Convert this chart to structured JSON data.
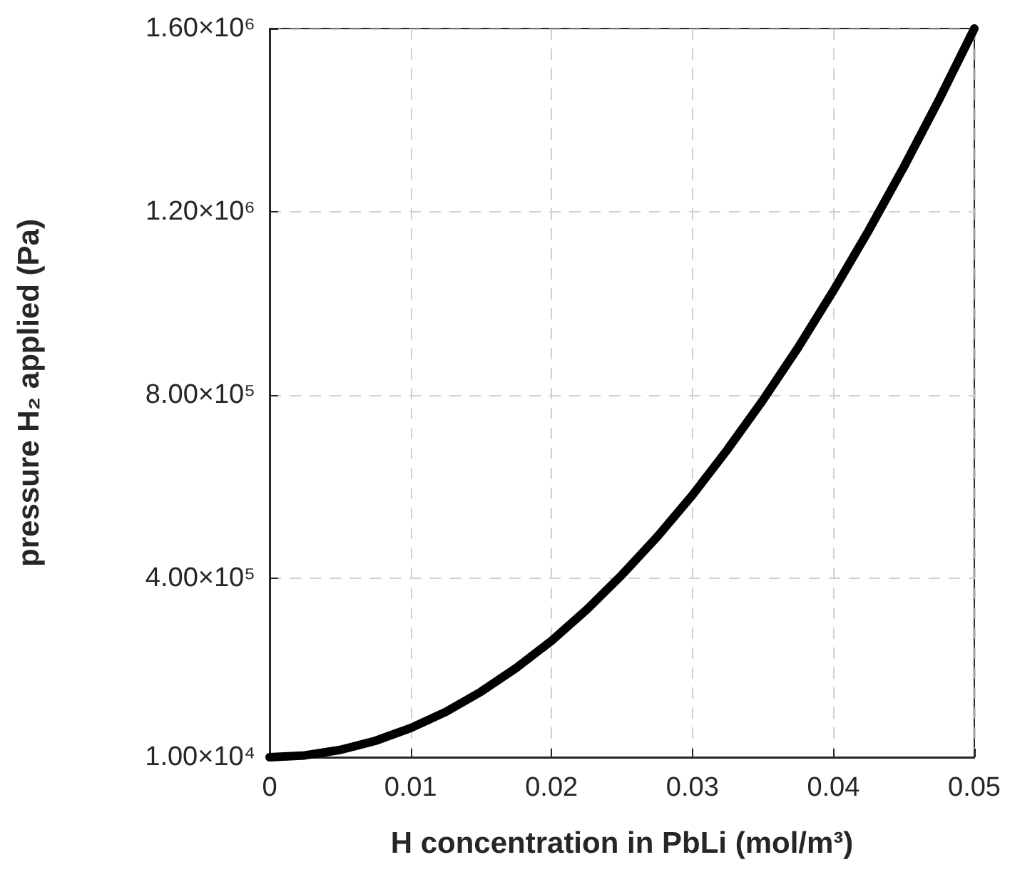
{
  "chart_data": {
    "type": "line",
    "xlabel": "H concentration in PbLi (mol/m³)",
    "ylabel": "pressure H₂ applied (Pa)",
    "x": [
      0,
      0.0025,
      0.005,
      0.0075,
      0.01,
      0.0125,
      0.015,
      0.0175,
      0.02,
      0.0225,
      0.025,
      0.0275,
      0.03,
      0.0325,
      0.035,
      0.0375,
      0.04,
      0.0425,
      0.045,
      0.0475,
      0.05
    ],
    "series": [
      {
        "color": "#000000",
        "values": [
          10000,
          14000,
          25900,
          45800,
          73600,
          109000,
          153000,
          205000,
          264000,
          332000,
          408000,
          491000,
          582000,
          682000,
          789000,
          904000,
          1028000,
          1159000,
          1298000,
          1445000,
          1600000
        ]
      }
    ],
    "xlim": [
      0,
      0.05
    ],
    "xticks": [
      0,
      0.01,
      0.02,
      0.03,
      0.04,
      0.05
    ],
    "ylim": [
      10000,
      1600000
    ],
    "yticks": [
      {
        "value": 10000,
        "label": "1.00×10⁴"
      },
      {
        "value": 400000,
        "label": "4.00×10⁵"
      },
      {
        "value": 800000,
        "label": "8.00×10⁵"
      },
      {
        "value": 1200000,
        "label": "1.20×10⁶"
      },
      {
        "value": 1600000,
        "label": "1.60×10⁶"
      }
    ],
    "grid": true,
    "marker": "none",
    "line_style": "solid"
  }
}
